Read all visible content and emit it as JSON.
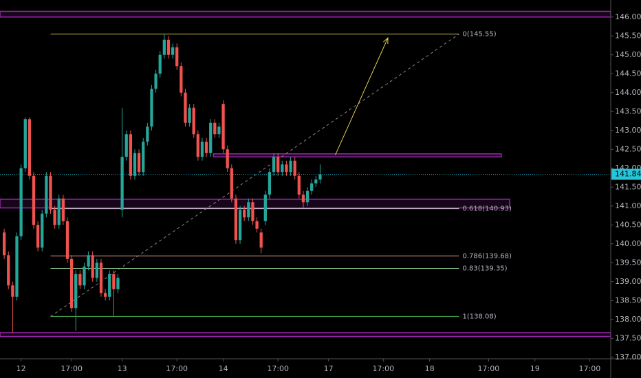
{
  "chart_data": {
    "type": "candlestick",
    "x": [
      -4,
      -3,
      -2,
      -1,
      0,
      1,
      2,
      3,
      4,
      5,
      6,
      7,
      8,
      9,
      10,
      11,
      12,
      13,
      14,
      15,
      16,
      17,
      18,
      19,
      20,
      21,
      22,
      23,
      24,
      25,
      26,
      27,
      28,
      29,
      30,
      31,
      32,
      33,
      34,
      35,
      36,
      37,
      38,
      39,
      40,
      41,
      42,
      43,
      44,
      45,
      46,
      47,
      48,
      49,
      50,
      51,
      52,
      53,
      54,
      55,
      56,
      57,
      58,
      59,
      60,
      61,
      62,
      63,
      64,
      65,
      66,
      67,
      68,
      69,
      70,
      71
    ],
    "open": [
      140.3,
      139.7,
      138.9,
      138.6,
      140.2,
      142.0,
      143.3,
      141.8,
      140.5,
      139.9,
      140.8,
      141.8,
      140.9,
      140.5,
      141.2,
      140.6,
      139.6,
      138.3,
      139.2,
      138.9,
      139.4,
      139.7,
      139.1,
      139.5,
      138.7,
      138.6,
      139.2,
      138.8,
      140.9,
      142.3,
      142.9,
      141.8,
      142.4,
      141.9,
      142.7,
      143.1,
      144.1,
      144.5,
      145.0,
      145.4,
      145.0,
      145.2,
      144.7,
      144.0,
      143.2,
      143.6,
      142.9,
      142.3,
      142.7,
      142.4,
      143.2,
      142.9,
      143.7,
      142.5,
      142.0,
      141.2,
      140.1,
      140.9,
      140.7,
      141.1,
      140.6,
      140.3,
      140.6,
      141.3,
      141.9,
      142.3,
      141.9,
      142.1,
      141.9,
      142.2,
      141.8,
      141.3,
      141.1,
      141.4,
      141.6,
      141.7
    ],
    "high": [
      140.4,
      139.8,
      139.0,
      140.3,
      142.1,
      143.35,
      143.35,
      141.9,
      140.6,
      140.9,
      141.9,
      141.9,
      141.0,
      141.3,
      141.3,
      140.7,
      139.7,
      139.3,
      139.3,
      139.5,
      139.8,
      139.8,
      139.6,
      139.6,
      138.8,
      139.3,
      139.3,
      139.2,
      143.6,
      143.0,
      143.0,
      142.5,
      142.5,
      142.8,
      143.2,
      144.2,
      144.6,
      145.1,
      145.55,
      145.5,
      145.3,
      145.3,
      144.8,
      144.1,
      143.7,
      143.7,
      143.0,
      142.8,
      142.8,
      143.3,
      143.3,
      143.2,
      143.8,
      142.6,
      142.1,
      141.3,
      141.0,
      141.0,
      141.2,
      141.2,
      140.7,
      140.4,
      141.4,
      142.0,
      142.4,
      142.4,
      142.2,
      142.2,
      142.3,
      142.3,
      141.9,
      141.4,
      141.5,
      141.7,
      141.8,
      142.1
    ],
    "low": [
      139.6,
      138.8,
      137.65,
      138.5,
      140.1,
      141.9,
      141.7,
      140.4,
      139.8,
      139.8,
      140.7,
      140.8,
      140.4,
      140.4,
      140.5,
      139.5,
      138.2,
      137.7,
      138.8,
      138.8,
      139.3,
      139.0,
      139.0,
      138.6,
      138.5,
      138.5,
      138.1,
      138.7,
      140.7,
      142.2,
      141.7,
      141.7,
      141.8,
      141.8,
      142.6,
      143.0,
      144.0,
      144.4,
      144.9,
      144.9,
      144.9,
      144.6,
      143.9,
      143.1,
      143.1,
      142.8,
      142.2,
      142.2,
      142.3,
      142.3,
      142.8,
      142.8,
      142.4,
      141.9,
      141.1,
      140.0,
      140.0,
      140.6,
      140.6,
      140.5,
      140.3,
      139.75,
      140.5,
      141.2,
      141.8,
      141.8,
      141.8,
      141.8,
      141.8,
      141.7,
      141.2,
      140.95,
      141.0,
      141.3,
      141.5,
      141.6
    ],
    "close": [
      139.7,
      138.9,
      138.6,
      140.2,
      142.0,
      143.3,
      141.8,
      140.5,
      139.9,
      140.8,
      141.8,
      140.9,
      140.5,
      141.2,
      140.6,
      139.6,
      138.3,
      139.2,
      138.9,
      139.4,
      139.7,
      139.1,
      139.5,
      138.7,
      138.6,
      139.2,
      138.8,
      139.1,
      142.3,
      142.9,
      141.8,
      142.4,
      141.9,
      142.7,
      143.1,
      144.1,
      144.5,
      145.0,
      145.4,
      145.0,
      145.2,
      144.7,
      144.0,
      143.2,
      143.6,
      142.9,
      142.3,
      142.7,
      142.4,
      143.2,
      142.9,
      143.1,
      142.5,
      142.0,
      141.2,
      140.1,
      140.9,
      140.7,
      141.1,
      140.6,
      140.4,
      139.9,
      141.3,
      141.9,
      142.3,
      141.9,
      142.1,
      141.9,
      142.2,
      141.8,
      141.3,
      141.1,
      141.4,
      141.6,
      141.7,
      141.84
    ],
    "up_color": "#26a69a",
    "down_color": "#ef5350",
    "xlim": [
      -5,
      140
    ],
    "xticks": [
      {
        "value": 0,
        "label": "12"
      },
      {
        "value": 12,
        "label": "17:00"
      },
      {
        "value": 24,
        "label": "13"
      },
      {
        "value": 37,
        "label": "17:00"
      },
      {
        "value": 48,
        "label": "14"
      },
      {
        "value": 61,
        "label": "17:00"
      },
      {
        "value": 73,
        "label": "17"
      },
      {
        "value": 86,
        "label": "17:00"
      },
      {
        "value": 97,
        "label": "18"
      },
      {
        "value": 111,
        "label": "17:00"
      },
      {
        "value": 122,
        "label": "19"
      },
      {
        "value": 135,
        "label": "17:00"
      }
    ],
    "ylim": [
      136.96,
      146.45
    ],
    "yticks": [
      {
        "value": 137,
        "label": "137.00"
      },
      {
        "value": 137.5,
        "label": "137.50"
      },
      {
        "value": 138,
        "label": "138.00"
      },
      {
        "value": 138.5,
        "label": "138.50"
      },
      {
        "value": 139,
        "label": "139.00"
      },
      {
        "value": 139.5,
        "label": "139.50"
      },
      {
        "value": 140,
        "label": "140.00"
      },
      {
        "value": 140.5,
        "label": "140.50"
      },
      {
        "value": 141,
        "label": "141.00"
      },
      {
        "value": 141.5,
        "label": "141.50"
      },
      {
        "value": 142,
        "label": "142.00"
      },
      {
        "value": 142.5,
        "label": "142.50"
      },
      {
        "value": 143,
        "label": "143.00"
      },
      {
        "value": 143.5,
        "label": "143.50"
      },
      {
        "value": 144,
        "label": "144.00"
      },
      {
        "value": 144.5,
        "label": "144.50"
      },
      {
        "value": 145,
        "label": "145.00"
      },
      {
        "value": 145.5,
        "label": "145.50"
      },
      {
        "value": 146,
        "label": "146.00"
      }
    ],
    "last_price": 141.84,
    "last_price_color": "#26c6da",
    "zones": [
      {
        "range": [
          146.0,
          146.15
        ],
        "x": [
          -5,
          140
        ]
      },
      {
        "range": [
          142.3,
          142.38
        ],
        "x": [
          45.7,
          114
        ]
      },
      {
        "range": [
          140.95,
          141.18
        ],
        "x": [
          -5,
          116
        ]
      },
      {
        "range": [
          137.55,
          137.65
        ],
        "x": [
          -5,
          140
        ]
      }
    ],
    "zone_color": "#9c27b0",
    "fib": {
      "x": [
        7,
        104
      ],
      "levels": [
        {
          "price": 145.55,
          "label": "0(145.55)",
          "color": "#d8cf4e"
        },
        {
          "price": 140.93,
          "label": "0.618(140.93)",
          "color": "#d0d0d0"
        },
        {
          "price": 139.68,
          "label": "0.786(139.68)",
          "color": "#f0a090"
        },
        {
          "price": 139.35,
          "label": "0.83(139.35)",
          "color": "#8fcf8f"
        },
        {
          "price": 138.08,
          "label": "1(138.08)",
          "color": "#4caf50"
        }
      ]
    },
    "trend_line": {
      "x": [
        7,
        104
      ],
      "y": [
        138.08,
        145.55
      ],
      "color": "#888888"
    },
    "arrow": {
      "x": [
        74.6,
        87.1
      ],
      "y": [
        142.35,
        145.45
      ],
      "color": "#e0d050"
    }
  }
}
